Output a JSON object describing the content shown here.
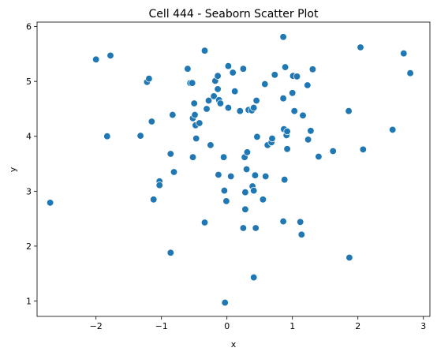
{
  "chart_data": {
    "type": "scatter",
    "title": "Cell 444 - Seaborn Scatter Plot",
    "xlabel": "x",
    "ylabel": "y",
    "xlim": [
      -2.9,
      3.1
    ],
    "ylim": [
      0.72,
      6.08
    ],
    "xticks": [
      -2,
      -1,
      0,
      1,
      2,
      3
    ],
    "yticks": [
      1,
      2,
      3,
      4,
      5,
      6
    ],
    "grid": false,
    "legend": "none",
    "color": "#1f77b4",
    "points": [
      [
        -2.7,
        2.79
      ],
      [
        -2.0,
        5.4
      ],
      [
        -1.78,
        5.47
      ],
      [
        -1.83,
        4.0
      ],
      [
        -1.32,
        4.01
      ],
      [
        -1.22,
        4.99
      ],
      [
        -1.19,
        5.05
      ],
      [
        -1.15,
        4.27
      ],
      [
        -1.12,
        2.85
      ],
      [
        -1.03,
        3.18
      ],
      [
        -1.03,
        3.11
      ],
      [
        -0.86,
        3.68
      ],
      [
        -0.83,
        4.39
      ],
      [
        -0.81,
        3.35
      ],
      [
        -0.86,
        1.88
      ],
      [
        -0.6,
        5.23
      ],
      [
        -0.56,
        4.97
      ],
      [
        -0.53,
        4.97
      ],
      [
        -0.52,
        4.33
      ],
      [
        -0.5,
        4.6
      ],
      [
        -0.49,
        4.39
      ],
      [
        -0.48,
        4.2
      ],
      [
        -0.47,
        3.96
      ],
      [
        -0.52,
        3.62
      ],
      [
        -0.42,
        4.24
      ],
      [
        -0.34,
        5.56
      ],
      [
        -0.31,
        4.5
      ],
      [
        -0.28,
        4.65
      ],
      [
        -0.25,
        3.84
      ],
      [
        -0.2,
        4.73
      ],
      [
        -0.18,
        5.01
      ],
      [
        -0.14,
        5.1
      ],
      [
        -0.14,
        4.86
      ],
      [
        -0.12,
        4.66
      ],
      [
        -0.1,
        4.6
      ],
      [
        -0.34,
        2.43
      ],
      [
        -0.13,
        3.3
      ],
      [
        -0.05,
        3.62
      ],
      [
        -0.04,
        3.01
      ],
      [
        -0.01,
        2.82
      ],
      [
        0.02,
        5.28
      ],
      [
        0.02,
        4.52
      ],
      [
        0.06,
        3.27
      ],
      [
        0.09,
        5.16
      ],
      [
        0.12,
        4.82
      ],
      [
        0.2,
        4.46
      ],
      [
        0.25,
        5.23
      ],
      [
        0.25,
        2.33
      ],
      [
        0.27,
        3.62
      ],
      [
        0.28,
        2.98
      ],
      [
        0.28,
        2.67
      ],
      [
        0.31,
        3.71
      ],
      [
        0.3,
        3.4
      ],
      [
        0.33,
        4.48
      ],
      [
        0.38,
        4.47
      ],
      [
        0.39,
        3.09
      ],
      [
        0.41,
        4.52
      ],
      [
        0.41,
        3.01
      ],
      [
        0.43,
        3.29
      ],
      [
        0.45,
        4.65
      ],
      [
        0.46,
        3.99
      ],
      [
        0.44,
        2.33
      ],
      [
        0.55,
        2.85
      ],
      [
        0.58,
        4.95
      ],
      [
        0.59,
        3.27
      ],
      [
        0.62,
        3.84
      ],
      [
        0.68,
        3.89
      ],
      [
        0.69,
        3.96
      ],
      [
        0.73,
        5.12
      ],
      [
        0.86,
        5.81
      ],
      [
        0.86,
        4.69
      ],
      [
        0.87,
        4.13
      ],
      [
        0.89,
        5.26
      ],
      [
        0.91,
        4.02
      ],
      [
        0.92,
        4.09
      ],
      [
        0.92,
        3.77
      ],
      [
        0.88,
        3.21
      ],
      [
        0.86,
        2.45
      ],
      [
        1.0,
        4.79
      ],
      [
        1.01,
        5.1
      ],
      [
        1.03,
        4.46
      ],
      [
        1.07,
        5.09
      ],
      [
        1.12,
        2.44
      ],
      [
        1.14,
        2.21
      ],
      [
        1.16,
        4.38
      ],
      [
        1.23,
        4.93
      ],
      [
        1.24,
        3.94
      ],
      [
        1.28,
        4.1
      ],
      [
        1.31,
        5.22
      ],
      [
        1.4,
        3.63
      ],
      [
        1.62,
        3.73
      ],
      [
        1.86,
        4.46
      ],
      [
        1.87,
        1.79
      ],
      [
        2.04,
        5.62
      ],
      [
        2.08,
        3.76
      ],
      [
        2.53,
        4.12
      ],
      [
        2.7,
        5.51
      ],
      [
        2.8,
        5.15
      ],
      [
        0.41,
        1.43
      ],
      [
        -0.03,
        0.97
      ]
    ]
  }
}
